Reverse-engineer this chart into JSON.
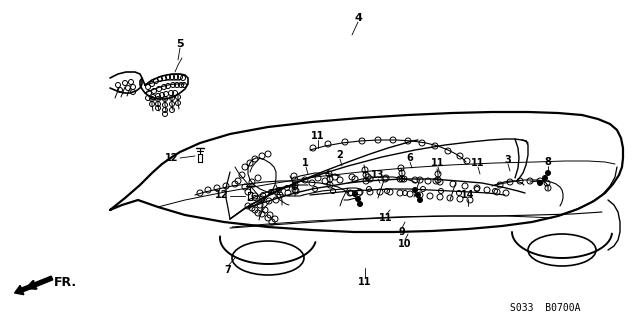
{
  "bg_color": "#ffffff",
  "line_color": "#000000",
  "fig_width": 6.4,
  "fig_height": 3.19,
  "dpi": 100,
  "footer_text": "S033  B0700A"
}
